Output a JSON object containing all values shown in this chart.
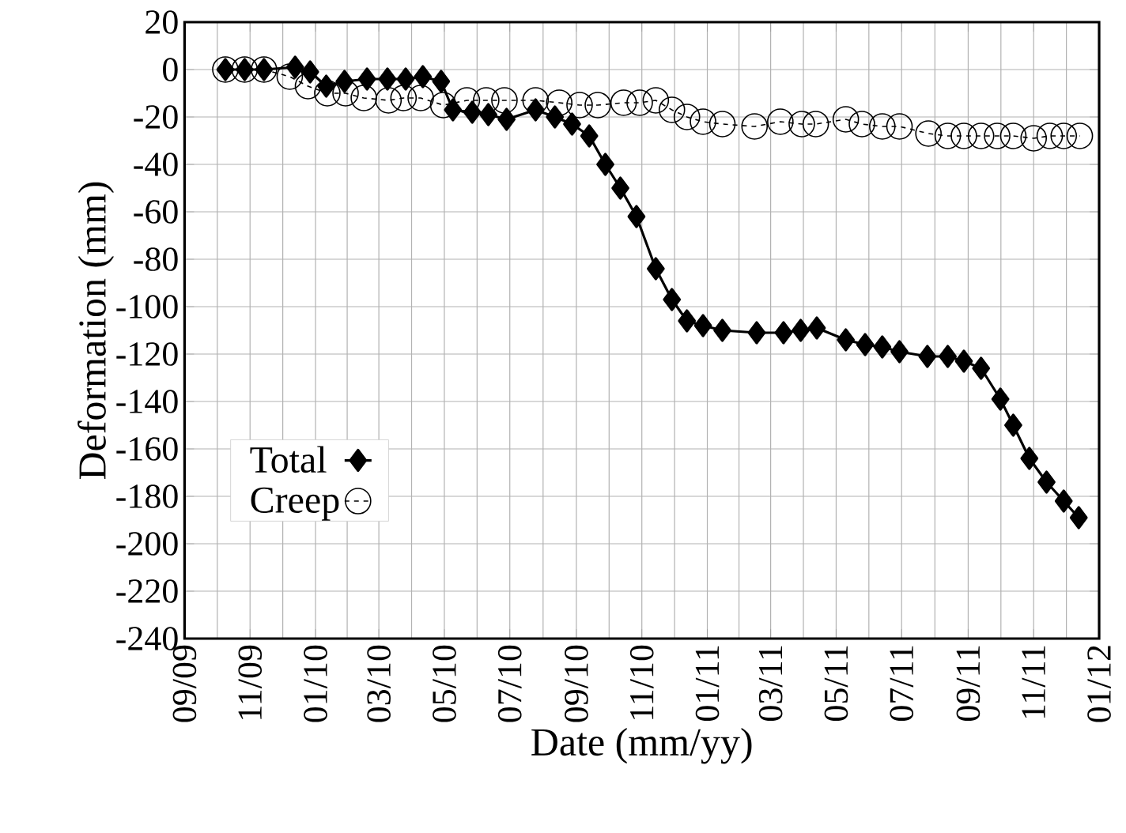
{
  "chart_data": {
    "type": "line",
    "xlabel": "Date (mm/yy)",
    "ylabel": "Deformation (mm)",
    "xlim": [
      "2009-09",
      "2012-01"
    ],
    "ylim": [
      -240,
      20
    ],
    "xticks": [
      {
        "value": "2009-09",
        "label": "09/09"
      },
      {
        "value": "2009-11",
        "label": "11/09"
      },
      {
        "value": "2010-01",
        "label": "01/10"
      },
      {
        "value": "2010-03",
        "label": "03/10"
      },
      {
        "value": "2010-05",
        "label": "05/10"
      },
      {
        "value": "2010-07",
        "label": "07/10"
      },
      {
        "value": "2010-09",
        "label": "09/10"
      },
      {
        "value": "2010-11",
        "label": "11/10"
      },
      {
        "value": "2011-01",
        "label": "01/11"
      },
      {
        "value": "2011-03",
        "label": "03/11"
      },
      {
        "value": "2011-05",
        "label": "05/11"
      },
      {
        "value": "2011-07",
        "label": "07/11"
      },
      {
        "value": "2011-09",
        "label": "09/11"
      },
      {
        "value": "2011-11",
        "label": "11/11"
      },
      {
        "value": "2012-01",
        "label": "01/12"
      }
    ],
    "yticks": [
      20,
      0,
      -20,
      -40,
      -60,
      -80,
      -100,
      -120,
      -140,
      -160,
      -180,
      -200,
      -220,
      -240
    ],
    "grid": true,
    "legend": "left",
    "series": [
      {
        "name": "Total",
        "color": "#000000",
        "marker": "diamond",
        "line_style": "solid",
        "x": [
          "2009-10-09",
          "2009-10-27",
          "2009-11-14",
          "2009-12-13",
          "2009-12-27",
          "2010-01-11",
          "2010-01-28",
          "2010-02-18",
          "2010-03-09",
          "2010-03-26",
          "2010-04-11",
          "2010-04-28",
          "2010-05-09",
          "2010-05-27",
          "2010-06-11",
          "2010-06-28",
          "2010-07-25",
          "2010-08-12",
          "2010-08-28",
          "2010-09-13",
          "2010-09-28",
          "2010-10-12",
          "2010-10-27",
          "2010-11-14",
          "2010-11-29",
          "2010-12-13",
          "2010-12-28",
          "2011-01-15",
          "2011-02-16",
          "2011-03-13",
          "2011-03-29",
          "2011-04-13",
          "2011-05-10",
          "2011-05-28",
          "2011-06-13",
          "2011-06-29",
          "2011-07-25",
          "2011-08-13",
          "2011-08-28",
          "2011-09-13",
          "2011-10-01",
          "2011-10-13",
          "2011-10-28",
          "2011-11-13",
          "2011-11-29",
          "2011-12-13"
        ],
        "values": [
          0,
          0,
          0,
          1,
          -1,
          -7,
          -5,
          -4,
          -4,
          -4,
          -3,
          -5,
          -17,
          -18,
          -19,
          -21,
          -17,
          -20,
          -23,
          -28,
          -40,
          -50,
          -62,
          -84,
          -97,
          -106,
          -108,
          -110,
          -111,
          -111,
          -110,
          -109,
          -114,
          -116,
          -117,
          -119,
          -121,
          -121,
          -123,
          -126,
          -139,
          -150,
          -164,
          -174,
          -182,
          -189
        ]
      },
      {
        "name": "Creep",
        "color": "#000000",
        "marker": "circle",
        "line_style": "dashed",
        "x": [
          "2009-10-09",
          "2009-10-27",
          "2009-11-14",
          "2009-12-08",
          "2009-12-25",
          "2010-01-12",
          "2010-01-29",
          "2010-02-15",
          "2010-03-10",
          "2010-03-24",
          "2010-04-09",
          "2010-04-30",
          "2010-05-22",
          "2010-06-09",
          "2010-06-26",
          "2010-07-25",
          "2010-08-16",
          "2010-09-04",
          "2010-09-21",
          "2010-10-15",
          "2010-10-30",
          "2010-11-14",
          "2010-11-29",
          "2010-12-13",
          "2010-12-28",
          "2011-01-15",
          "2011-02-14",
          "2011-03-10",
          "2011-03-30",
          "2011-04-12",
          "2011-05-10",
          "2011-05-25",
          "2011-06-13",
          "2011-06-29",
          "2011-07-26",
          "2011-08-13",
          "2011-08-28",
          "2011-09-13",
          "2011-09-28",
          "2011-10-13",
          "2011-11-01",
          "2011-11-16",
          "2011-11-29",
          "2011-12-14"
        ],
        "values": [
          0,
          0,
          0,
          -3,
          -7,
          -10,
          -10,
          -12,
          -13,
          -12,
          -12,
          -15,
          -13,
          -13,
          -13,
          -13,
          -14,
          -15,
          -15,
          -14,
          -14,
          -13,
          -17,
          -20,
          -22,
          -23,
          -24,
          -22,
          -23,
          -23,
          -21,
          -23,
          -24,
          -24,
          -27,
          -28,
          -28,
          -28,
          -28,
          -28,
          -29,
          -28,
          -28,
          -28
        ]
      }
    ]
  }
}
